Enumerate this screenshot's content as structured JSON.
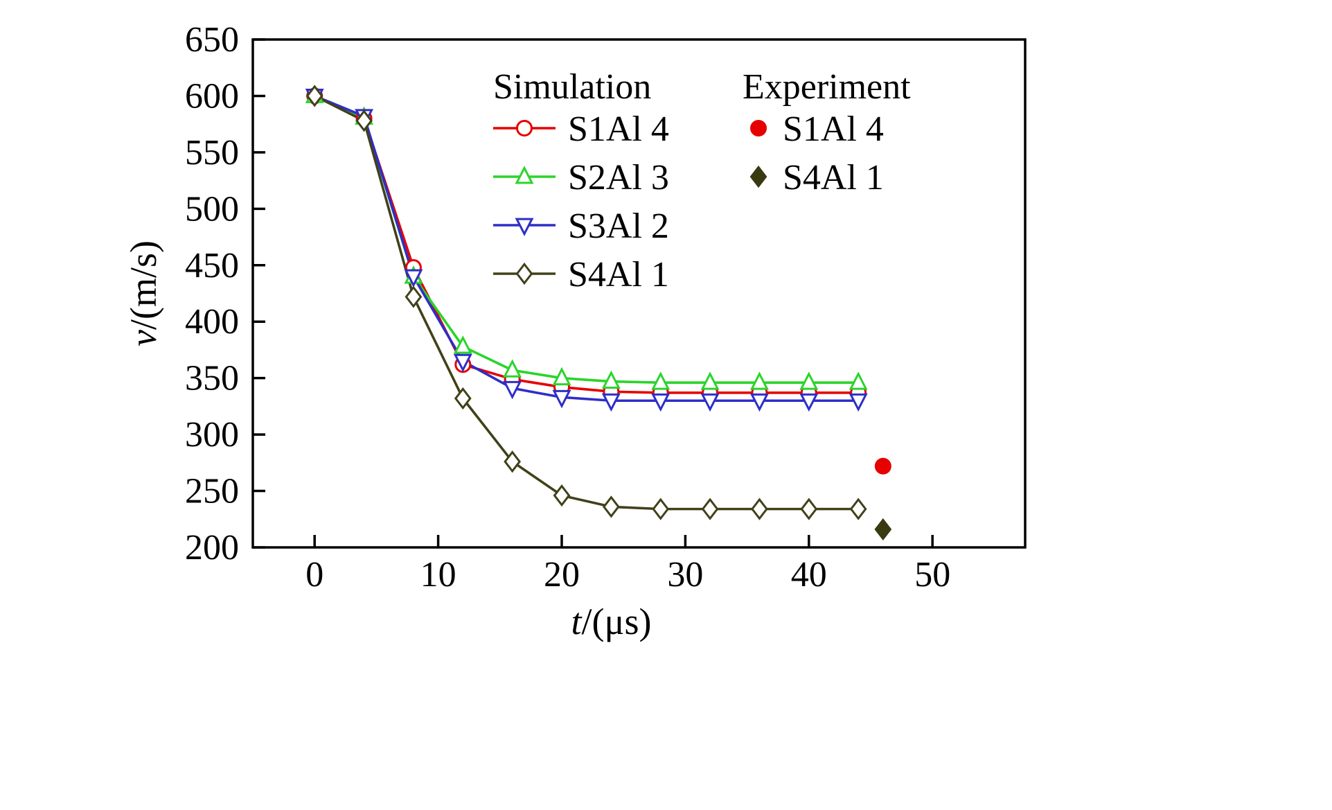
{
  "chart_data": {
    "type": "line",
    "title": "",
    "xlabel": "t/(μs)",
    "xlabel_italic": "t",
    "xlabel_rest": "/(μs)",
    "ylabel": "v/(m/s)",
    "ylabel_italic": "v",
    "ylabel_rest": "/(m/s)",
    "xlim": [
      -5,
      57.5
    ],
    "ylim": [
      200,
      650
    ],
    "x_ticks": [
      0,
      10,
      20,
      30,
      40,
      50
    ],
    "y_ticks": [
      200,
      250,
      300,
      350,
      400,
      450,
      500,
      550,
      600,
      650
    ],
    "grid": false,
    "legend_position": "top-inside",
    "x": [
      0,
      4,
      8,
      12,
      16,
      20,
      24,
      28,
      32,
      36,
      40,
      44
    ],
    "series": [
      {
        "name": "S1Al 4",
        "color": "#e60000",
        "marker": "circle-open",
        "values": [
          600,
          580,
          448,
          362,
          349,
          342,
          338,
          337,
          337,
          337,
          337,
          337
        ]
      },
      {
        "name": "S2Al 3",
        "color": "#2bd42b",
        "marker": "triangle-up-open",
        "values": [
          600,
          581,
          440,
          378,
          357,
          350,
          347,
          346,
          346,
          346,
          346,
          346
        ]
      },
      {
        "name": "S3Al 2",
        "color": "#2e2ec8",
        "marker": "triangle-down-open",
        "values": [
          600,
          582,
          440,
          365,
          341,
          333,
          330,
          330,
          330,
          330,
          330,
          330
        ]
      },
      {
        "name": "S4Al 1",
        "color": "#41411a",
        "marker": "diamond-open",
        "values": [
          600,
          578,
          422,
          332,
          276,
          246,
          236,
          234,
          234,
          234,
          234,
          234
        ]
      }
    ],
    "experiment_points": [
      {
        "name": "S1Al 4",
        "color": "#e60000",
        "marker": "circle-filled",
        "x": 46,
        "y": 272
      },
      {
        "name": "S4Al 1",
        "color": "#3a3a12",
        "marker": "diamond-filled",
        "x": 46,
        "y": 216
      }
    ],
    "legend": {
      "simulation_title": "Simulation",
      "experiment_title": "Experiment",
      "simulation_entries": [
        "S1Al 4",
        "S2Al 3",
        "S3Al 2",
        "S4Al 1"
      ],
      "experiment_entries": [
        "S1Al 4",
        "S4Al 1"
      ]
    },
    "colors": {
      "axis": "#000000",
      "background": "#ffffff"
    }
  }
}
